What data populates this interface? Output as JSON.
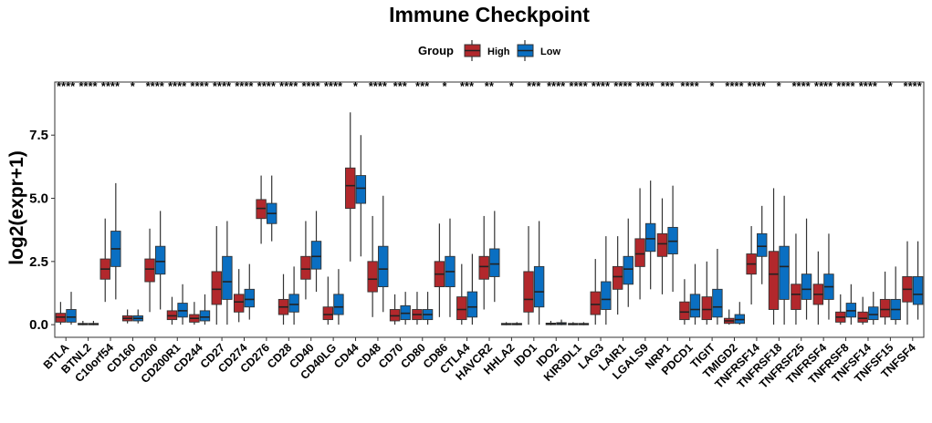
{
  "chart_data": {
    "type": "box",
    "title": "Immune Checkpoint",
    "ylabel": "log2(expr+1)",
    "xlabel": "",
    "ylim": [
      -0.5,
      9.6
    ],
    "yticks": [
      0.0,
      2.5,
      5.0,
      7.5
    ],
    "ytick_labels": [
      "0.0",
      "2.5",
      "5.0",
      "7.5"
    ],
    "legend": {
      "title": "Group",
      "position": "top",
      "entries": [
        {
          "name": "High",
          "color": "#B2282C"
        },
        {
          "name": "Low",
          "color": "#0A6FC2"
        }
      ]
    },
    "series": [
      {
        "name": "High",
        "color": "#B2282C"
      },
      {
        "name": "Low",
        "color": "#0A6FC2"
      }
    ],
    "categories": [
      "BTLA",
      "BTNL2",
      "C10orf54",
      "CD160",
      "CD200",
      "CD200R1",
      "CD244",
      "CD27",
      "CD274",
      "CD276",
      "CD28",
      "CD40",
      "CD40LG",
      "CD44",
      "CD48",
      "CD70",
      "CD80",
      "CD86",
      "CTLA4",
      "HAVCR2",
      "HHLA2",
      "IDO1",
      "IDO2",
      "KIR3DL1",
      "LAG3",
      "LAIR1",
      "LGALS9",
      "NRP1",
      "PDCD1",
      "TIGIT",
      "TMIGD2",
      "TNFRSF14",
      "TNFRSF18",
      "TNFRSF25",
      "TNFRSF4",
      "TNFRSF8",
      "TNFSF14",
      "TNFSF15",
      "TNFSF4"
    ],
    "boxes": {
      "High": [
        [
          0.0,
          0.1,
          0.3,
          0.45,
          0.9
        ],
        [
          -0.02,
          0.0,
          0.02,
          0.05,
          0.15
        ],
        [
          0.9,
          1.8,
          2.2,
          2.6,
          4.2
        ],
        [
          0.05,
          0.15,
          0.25,
          0.35,
          0.6
        ],
        [
          0.5,
          1.7,
          2.2,
          2.6,
          3.8
        ],
        [
          0.0,
          0.2,
          0.35,
          0.55,
          1.1
        ],
        [
          0.0,
          0.1,
          0.25,
          0.4,
          0.9
        ],
        [
          0.0,
          0.8,
          1.4,
          2.1,
          3.9
        ],
        [
          0.1,
          0.5,
          0.9,
          1.2,
          2.2
        ],
        [
          3.2,
          4.2,
          4.6,
          4.95,
          5.9
        ],
        [
          0.0,
          0.4,
          0.7,
          1.0,
          2.0
        ],
        [
          1.0,
          1.8,
          2.2,
          2.7,
          4.1
        ],
        [
          0.0,
          0.2,
          0.4,
          0.7,
          1.9
        ],
        [
          2.5,
          4.6,
          5.5,
          6.2,
          8.4
        ],
        [
          0.3,
          1.3,
          1.8,
          2.5,
          4.3
        ],
        [
          0.0,
          0.15,
          0.35,
          0.6,
          1.2
        ],
        [
          0.0,
          0.2,
          0.4,
          0.6,
          1.3
        ],
        [
          0.3,
          1.5,
          2.0,
          2.5,
          4.0
        ],
        [
          0.0,
          0.2,
          0.6,
          1.1,
          2.4
        ],
        [
          0.6,
          1.8,
          2.3,
          2.7,
          4.3
        ],
        [
          -0.02,
          0.0,
          0.02,
          0.05,
          0.1
        ],
        [
          0.0,
          0.5,
          1.0,
          2.1,
          3.9
        ],
        [
          -0.02,
          0.0,
          0.03,
          0.06,
          0.15
        ],
        [
          -0.02,
          0.0,
          0.02,
          0.05,
          0.1
        ],
        [
          0.0,
          0.4,
          0.8,
          1.3,
          2.6
        ],
        [
          0.4,
          1.4,
          1.9,
          2.3,
          3.5
        ],
        [
          1.0,
          2.3,
          2.8,
          3.4,
          5.4
        ],
        [
          1.2,
          2.7,
          3.2,
          3.6,
          5.0
        ],
        [
          0.0,
          0.2,
          0.5,
          0.9,
          1.8
        ],
        [
          0.0,
          0.2,
          0.6,
          1.1,
          2.5
        ],
        [
          0.0,
          0.05,
          0.15,
          0.25,
          0.6
        ],
        [
          0.8,
          2.0,
          2.4,
          2.8,
          3.9
        ],
        [
          0.0,
          0.6,
          2.0,
          2.9,
          5.4
        ],
        [
          0.0,
          0.6,
          1.2,
          1.6,
          3.6
        ],
        [
          0.0,
          0.8,
          1.2,
          1.6,
          2.9
        ],
        [
          0.0,
          0.1,
          0.3,
          0.5,
          1.2
        ],
        [
          0.0,
          0.1,
          0.25,
          0.5,
          1.1
        ],
        [
          0.0,
          0.3,
          0.6,
          1.0,
          2.1
        ],
        [
          0.0,
          0.9,
          1.4,
          1.9,
          3.3
        ]
      ],
      "Low": [
        [
          0.0,
          0.1,
          0.3,
          0.6,
          1.3
        ],
        [
          -0.02,
          0.0,
          0.02,
          0.05,
          0.15
        ],
        [
          1.0,
          2.3,
          3.0,
          3.7,
          5.6
        ],
        [
          0.05,
          0.15,
          0.25,
          0.35,
          0.6
        ],
        [
          0.6,
          2.0,
          2.5,
          3.1,
          4.5
        ],
        [
          0.0,
          0.3,
          0.55,
          0.85,
          1.6
        ],
        [
          0.0,
          0.15,
          0.3,
          0.55,
          1.2
        ],
        [
          0.0,
          1.0,
          1.7,
          2.7,
          4.1
        ],
        [
          0.2,
          0.7,
          1.0,
          1.4,
          2.4
        ],
        [
          3.3,
          4.0,
          4.4,
          4.8,
          5.9
        ],
        [
          0.0,
          0.5,
          0.8,
          1.2,
          2.3
        ],
        [
          1.3,
          2.2,
          2.7,
          3.3,
          4.5
        ],
        [
          0.0,
          0.4,
          0.7,
          1.2,
          2.2
        ],
        [
          2.7,
          4.8,
          5.4,
          5.9,
          7.5
        ],
        [
          0.5,
          1.5,
          2.2,
          3.1,
          5.1
        ],
        [
          0.0,
          0.2,
          0.45,
          0.75,
          1.3
        ],
        [
          0.0,
          0.2,
          0.4,
          0.6,
          1.3
        ],
        [
          0.3,
          1.5,
          2.1,
          2.7,
          4.2
        ],
        [
          0.0,
          0.3,
          0.7,
          1.3,
          2.8
        ],
        [
          0.9,
          1.9,
          2.4,
          3.0,
          4.5
        ],
        [
          -0.02,
          0.0,
          0.02,
          0.05,
          0.1
        ],
        [
          0.0,
          0.7,
          1.3,
          2.3,
          4.1
        ],
        [
          -0.02,
          0.0,
          0.04,
          0.08,
          0.2
        ],
        [
          -0.02,
          0.0,
          0.02,
          0.05,
          0.1
        ],
        [
          0.0,
          0.6,
          1.0,
          1.7,
          3.5
        ],
        [
          0.7,
          1.6,
          2.2,
          2.7,
          4.2
        ],
        [
          1.4,
          2.9,
          3.4,
          4.0,
          5.7
        ],
        [
          1.3,
          2.8,
          3.3,
          3.85,
          5.5
        ],
        [
          0.0,
          0.3,
          0.6,
          1.2,
          2.4
        ],
        [
          0.0,
          0.3,
          0.7,
          1.4,
          3.0
        ],
        [
          0.0,
          0.05,
          0.2,
          0.4,
          0.9
        ],
        [
          1.6,
          2.7,
          3.1,
          3.6,
          4.7
        ],
        [
          0.0,
          1.0,
          2.3,
          3.1,
          5.1
        ],
        [
          0.2,
          1.0,
          1.4,
          2.0,
          4.2
        ],
        [
          0.2,
          1.0,
          1.5,
          2.0,
          3.6
        ],
        [
          0.0,
          0.3,
          0.55,
          0.85,
          1.6
        ],
        [
          0.0,
          0.2,
          0.4,
          0.7,
          1.3
        ],
        [
          0.0,
          0.2,
          0.6,
          1.0,
          2.3
        ],
        [
          0.2,
          0.8,
          1.2,
          1.9,
          3.3
        ]
      ]
    },
    "significance": [
      "****",
      "****",
      "****",
      "*",
      "****",
      "****",
      "****",
      "****",
      "****",
      "****",
      "****",
      "****",
      "****",
      "*",
      "****",
      "***",
      "***",
      "*",
      "***",
      "**",
      "*",
      "***",
      "****",
      "****",
      "****",
      "****",
      "****",
      "***",
      "****",
      "*",
      "****",
      "****",
      "*",
      "****",
      "****",
      "****",
      "****",
      "*",
      "****"
    ]
  }
}
